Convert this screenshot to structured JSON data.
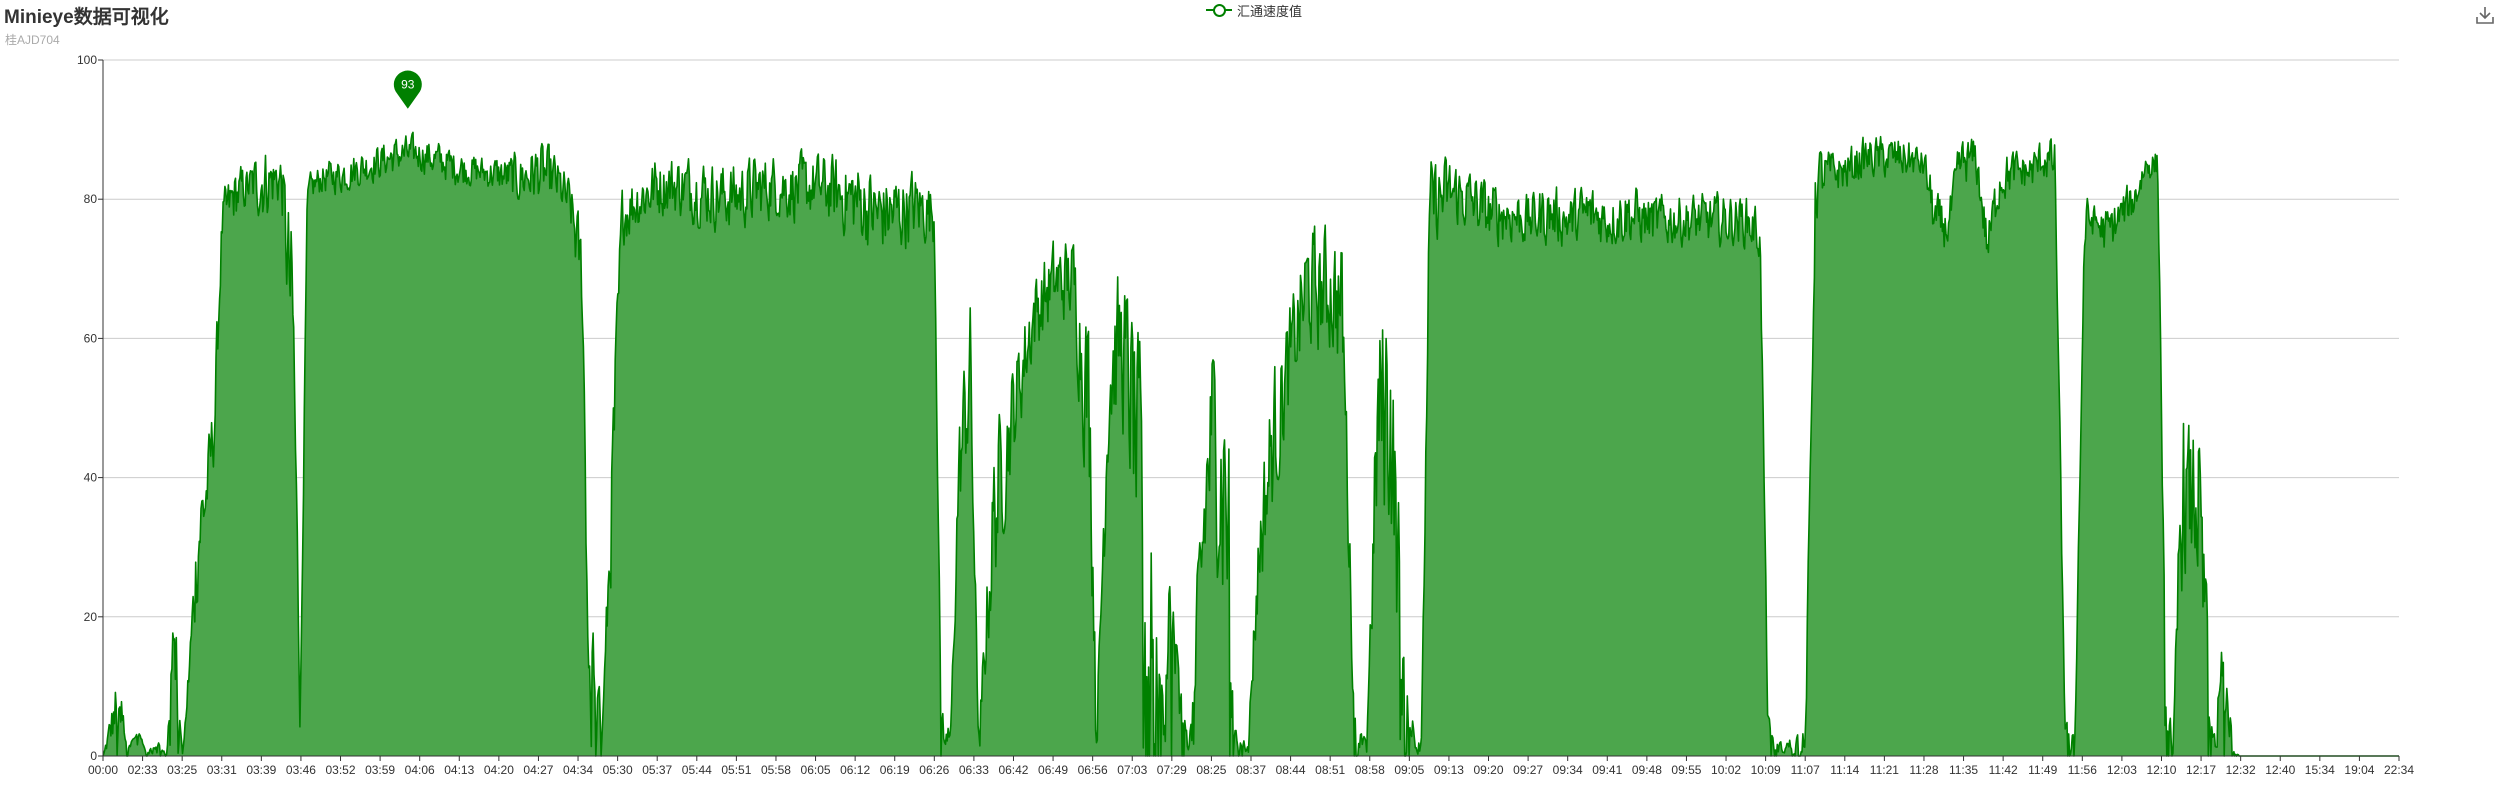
{
  "title": "Minieye数据可视化",
  "subtitle": "桂AJD704",
  "legend": {
    "label": "汇通速度值"
  },
  "toolbox": {
    "icon": "download-icon"
  },
  "colors": {
    "line": "#008000",
    "area": "#4ca64c",
    "grid": "#cccccc",
    "axis": "#333333",
    "marker": "#008000"
  },
  "chart_data": {
    "type": "area",
    "title": "Minieye数据可视化",
    "subtitle": "桂AJD704",
    "series": [
      {
        "name": "汇通速度值"
      }
    ],
    "x_ticks": [
      "00:00",
      "02:33",
      "03:25",
      "03:31",
      "03:39",
      "03:46",
      "03:52",
      "03:59",
      "04:06",
      "04:13",
      "04:20",
      "04:27",
      "04:34",
      "05:30",
      "05:37",
      "05:44",
      "05:51",
      "05:58",
      "06:05",
      "06:12",
      "06:19",
      "06:26",
      "06:33",
      "06:42",
      "06:49",
      "06:56",
      "07:03",
      "07:29",
      "08:25",
      "08:37",
      "08:44",
      "08:51",
      "08:58",
      "09:05",
      "09:13",
      "09:20",
      "09:27",
      "09:34",
      "09:41",
      "09:48",
      "09:55",
      "10:02",
      "10:09",
      "11:07",
      "11:14",
      "11:21",
      "11:28",
      "11:35",
      "11:42",
      "11:49",
      "11:56",
      "12:03",
      "12:10",
      "12:17",
      "12:32",
      "12:40",
      "15:34",
      "19:04",
      "22:34"
    ],
    "y_ticks": [
      "0",
      "20",
      "40",
      "60",
      "80",
      "100"
    ],
    "ylim": [
      0,
      100
    ],
    "grid": true,
    "legend_position": "top-center",
    "max_marker": {
      "value": 93,
      "label": "93",
      "x_index": 7.7
    },
    "profile": [
      [
        0,
        0,
        0
      ],
      [
        0.4,
        1,
        16
      ],
      [
        0.6,
        2,
        0
      ],
      [
        0.9,
        3,
        4
      ],
      [
        1.1,
        0,
        0
      ],
      [
        1.3,
        0,
        4
      ],
      [
        1.6,
        0,
        0
      ],
      [
        1.8,
        6,
        30
      ],
      [
        2.0,
        0,
        0
      ],
      [
        2.2,
        10,
        20
      ],
      [
        2.4,
        20,
        44
      ],
      [
        2.6,
        30,
        45
      ],
      [
        2.8,
        40,
        55
      ],
      [
        3.0,
        72,
        82
      ],
      [
        3.3,
        75,
        86
      ],
      [
        3.7,
        78,
        86
      ],
      [
        4.0,
        75,
        90
      ],
      [
        4.5,
        78,
        88
      ],
      [
        4.8,
        40,
        80
      ],
      [
        4.97,
        3,
        6
      ],
      [
        5.15,
        78,
        84
      ],
      [
        5.5,
        80,
        86
      ],
      [
        6.0,
        80,
        87
      ],
      [
        6.5,
        81,
        88
      ],
      [
        7.0,
        82,
        89
      ],
      [
        7.5,
        83,
        90
      ],
      [
        8.0,
        83,
        90
      ],
      [
        8.5,
        82,
        89
      ],
      [
        9.0,
        81,
        88
      ],
      [
        9.5,
        81,
        87
      ],
      [
        10.0,
        80,
        87
      ],
      [
        10.5,
        78,
        88
      ],
      [
        11.0,
        78,
        90
      ],
      [
        11.4,
        78,
        88
      ],
      [
        11.8,
        74,
        84
      ],
      [
        12.1,
        60,
        78
      ],
      [
        12.25,
        5,
        20
      ],
      [
        12.4,
        0,
        25
      ],
      [
        12.6,
        0,
        4
      ],
      [
        12.9,
        30,
        60
      ],
      [
        13.1,
        72,
        84
      ],
      [
        13.5,
        74,
        86
      ],
      [
        14.0,
        76,
        88
      ],
      [
        14.5,
        76,
        88
      ],
      [
        15.0,
        75,
        88
      ],
      [
        15.5,
        74,
        87
      ],
      [
        16.0,
        74,
        87
      ],
      [
        16.5,
        75,
        88
      ],
      [
        17.0,
        76,
        88
      ],
      [
        17.5,
        75,
        88
      ],
      [
        18.0,
        76,
        88
      ],
      [
        18.5,
        74,
        88
      ],
      [
        19.0,
        72,
        88
      ],
      [
        19.5,
        70,
        86
      ],
      [
        20.0,
        70,
        86
      ],
      [
        20.5,
        72,
        86
      ],
      [
        21.0,
        72,
        84
      ],
      [
        21.15,
        0,
        10
      ],
      [
        21.4,
        0,
        4
      ],
      [
        21.6,
        30,
        50
      ],
      [
        21.9,
        40,
        72
      ],
      [
        22.1,
        0,
        4
      ],
      [
        22.5,
        20,
        50
      ],
      [
        23.0,
        40,
        60
      ],
      [
        23.5,
        55,
        72
      ],
      [
        24.0,
        60,
        76
      ],
      [
        24.5,
        60,
        77
      ],
      [
        24.9,
        30,
        70
      ],
      [
        25.1,
        0,
        10
      ],
      [
        25.4,
        40,
        70
      ],
      [
        25.7,
        45,
        74
      ],
      [
        26.0,
        30,
        70
      ],
      [
        26.3,
        0,
        60
      ],
      [
        26.6,
        0,
        30
      ],
      [
        26.8,
        0,
        20
      ],
      [
        27.0,
        0,
        38
      ],
      [
        27.2,
        0,
        10
      ],
      [
        27.5,
        0,
        6
      ],
      [
        27.7,
        10,
        40
      ],
      [
        28.0,
        30,
        66
      ],
      [
        28.2,
        20,
        60
      ],
      [
        28.4,
        0,
        78
      ],
      [
        28.6,
        0,
        4
      ],
      [
        28.9,
        0,
        2
      ],
      [
        29.2,
        20,
        40
      ],
      [
        29.5,
        30,
        58
      ],
      [
        29.8,
        40,
        64
      ],
      [
        30.1,
        50,
        70
      ],
      [
        30.4,
        55,
        80
      ],
      [
        30.7,
        55,
        78
      ],
      [
        31.0,
        55,
        80
      ],
      [
        31.3,
        50,
        78
      ],
      [
        31.6,
        0,
        10
      ],
      [
        31.9,
        0,
        2
      ],
      [
        32.2,
        30,
        68
      ],
      [
        32.5,
        25,
        78
      ],
      [
        32.8,
        0,
        30
      ],
      [
        33.1,
        0,
        6
      ],
      [
        33.3,
        0,
        4
      ],
      [
        33.5,
        70,
        88
      ],
      [
        34.0,
        74,
        88
      ],
      [
        34.5,
        74,
        86
      ],
      [
        35.0,
        72,
        84
      ],
      [
        35.5,
        72,
        84
      ],
      [
        36.0,
        72,
        82
      ],
      [
        36.5,
        72,
        84
      ],
      [
        37.0,
        72,
        82
      ],
      [
        37.5,
        72,
        84
      ],
      [
        38.0,
        72,
        82
      ],
      [
        38.5,
        72,
        84
      ],
      [
        39.0,
        72,
        82
      ],
      [
        39.5,
        72,
        82
      ],
      [
        40.0,
        72,
        82
      ],
      [
        40.5,
        72,
        82
      ],
      [
        41.0,
        72,
        82
      ],
      [
        41.5,
        72,
        82
      ],
      [
        41.85,
        70,
        80
      ],
      [
        42.05,
        0,
        6
      ],
      [
        42.4,
        0,
        2
      ],
      [
        42.8,
        0,
        4
      ],
      [
        43.0,
        0,
        8
      ],
      [
        43.25,
        75,
        90
      ],
      [
        43.6,
        80,
        88
      ],
      [
        44.0,
        80,
        88
      ],
      [
        44.5,
        82,
        90
      ],
      [
        45.0,
        82,
        90
      ],
      [
        45.5,
        82,
        90
      ],
      [
        46.0,
        82,
        88
      ],
      [
        46.3,
        70,
        82
      ],
      [
        46.6,
        72,
        80
      ],
      [
        46.9,
        80,
        90
      ],
      [
        47.3,
        82,
        90
      ],
      [
        47.6,
        68,
        78
      ],
      [
        47.9,
        78,
        88
      ],
      [
        48.3,
        80,
        88
      ],
      [
        48.7,
        80,
        88
      ],
      [
        49.0,
        82,
        90
      ],
      [
        49.3,
        80,
        90
      ],
      [
        49.55,
        0,
        6
      ],
      [
        49.8,
        0,
        4
      ],
      [
        50.05,
        72,
        82
      ],
      [
        50.3,
        74,
        80
      ],
      [
        50.6,
        70,
        80
      ],
      [
        51.0,
        74,
        82
      ],
      [
        51.3,
        76,
        84
      ],
      [
        51.6,
        82,
        88
      ],
      [
        51.9,
        82,
        88
      ],
      [
        52.1,
        0,
        10
      ],
      [
        52.3,
        0,
        4
      ],
      [
        52.5,
        20,
        60
      ],
      [
        52.7,
        20,
        50
      ],
      [
        52.9,
        20,
        58
      ],
      [
        53.1,
        0,
        30
      ],
      [
        53.3,
        0,
        4
      ],
      [
        53.6,
        0,
        24
      ],
      [
        53.8,
        0,
        2
      ],
      [
        54.0,
        0,
        0
      ],
      [
        58.0,
        0,
        0
      ]
    ]
  }
}
